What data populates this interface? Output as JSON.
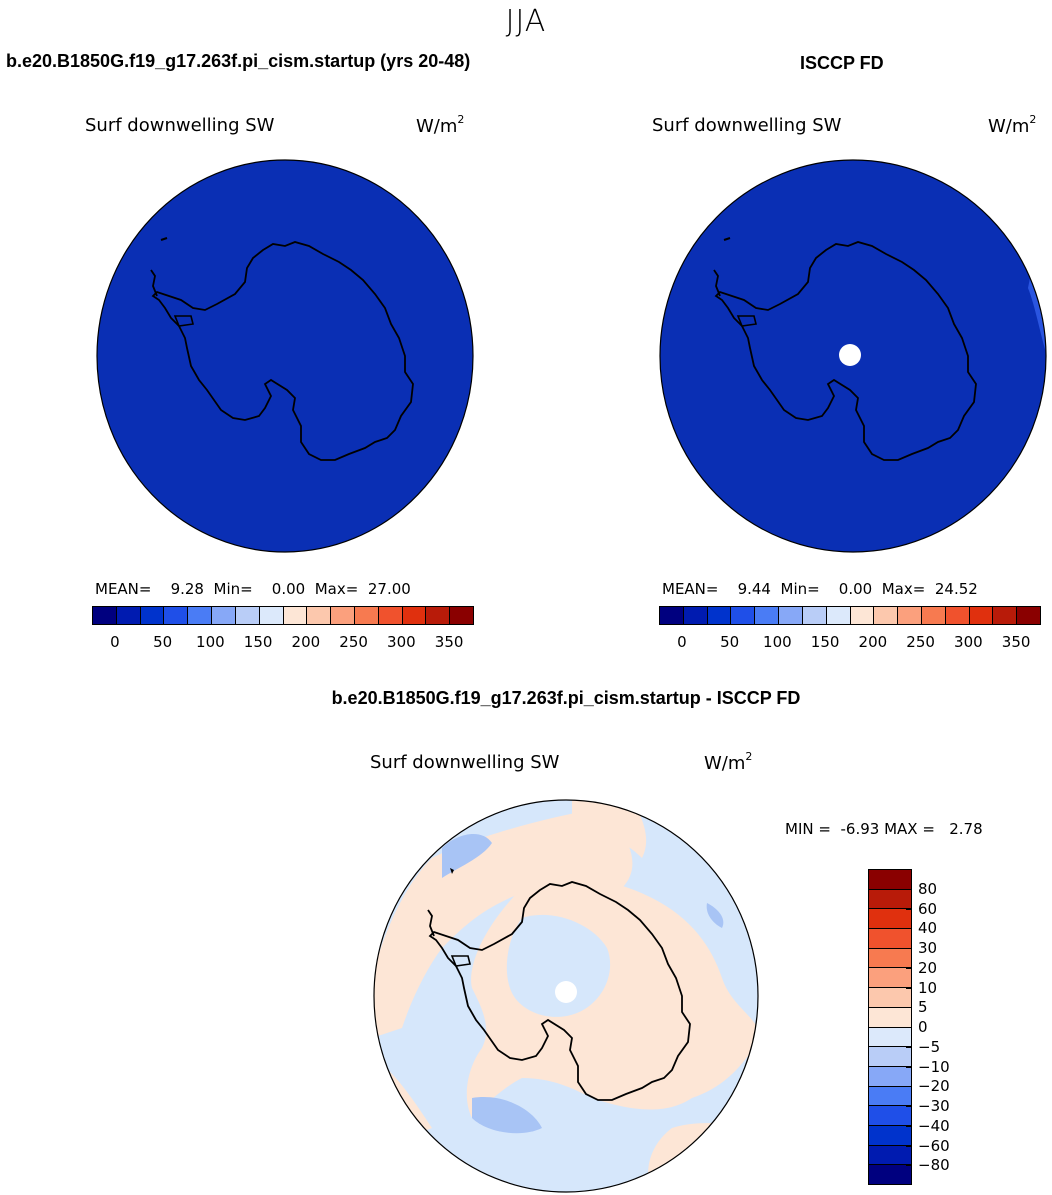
{
  "season": "JJA",
  "panels": [
    {
      "title": "b.e20.B1850G.f19_g17.263f.pi_cism.startup (yrs 20-48)",
      "variable": "Surf downwelling SW",
      "units_base": "W/m",
      "units_exp": "2",
      "stats": {
        "mean_label": "MEAN=",
        "mean": "9.28",
        "min_label": "Min=",
        "min": "0.00",
        "max_label": "Max=",
        "max": "27.00"
      }
    },
    {
      "title": "ISCCP FD",
      "variable": "Surf downwelling SW",
      "units_base": "W/m",
      "units_exp": "2",
      "stats": {
        "mean_label": "MEAN=",
        "mean": "9.44",
        "min_label": "Min=",
        "min": "0.00",
        "max_label": "Max=",
        "max": "24.52"
      }
    }
  ],
  "diff_panel": {
    "title": "b.e20.B1850G.f19_g17.263f.pi_cism.startup - ISCCP FD",
    "variable": "Surf downwelling SW",
    "units_base": "W/m",
    "units_exp": "2",
    "stats": {
      "min_label": "MIN =",
      "min": "-6.93",
      "max_label": "MAX =",
      "max": "2.78"
    }
  },
  "colorbar_abs": {
    "colors": [
      "#00007f",
      "#001bb0",
      "#0033cc",
      "#1f4fe8",
      "#4a7cf5",
      "#87a8f7",
      "#b9cdf7",
      "#dce9fb",
      "#fde6d6",
      "#fcc8ad",
      "#fba07d",
      "#f77a50",
      "#f0522d",
      "#e0300e",
      "#b81b09",
      "#8a0000"
    ],
    "ticks": [
      "0",
      "50",
      "100",
      "150",
      "200",
      "250",
      "300",
      "350"
    ]
  },
  "colorbar_diff": {
    "colors_top_to_bottom": [
      "#8a0000",
      "#b81b09",
      "#e0300e",
      "#f0522d",
      "#f77a50",
      "#fba07d",
      "#fcc8ad",
      "#fde6d6",
      "#dce9fb",
      "#b9cdf7",
      "#87a8f7",
      "#4a7cf5",
      "#1f4fe8",
      "#0033cc",
      "#001bb0",
      "#00007f"
    ],
    "ticks": [
      "80",
      "60",
      "40",
      "30",
      "20",
      "10",
      "5",
      "0",
      "−5",
      "−10",
      "−20",
      "−30",
      "−40",
      "−60",
      "−80"
    ]
  },
  "map_colors": {
    "panel_fill": "#0a2fb4",
    "panel_edge": "#2a55e0",
    "diff_ocean": "#d6e7fb",
    "diff_positive": "#fde6d6",
    "diff_negative": "#a8c4f5",
    "missing": "#ffffff"
  }
}
